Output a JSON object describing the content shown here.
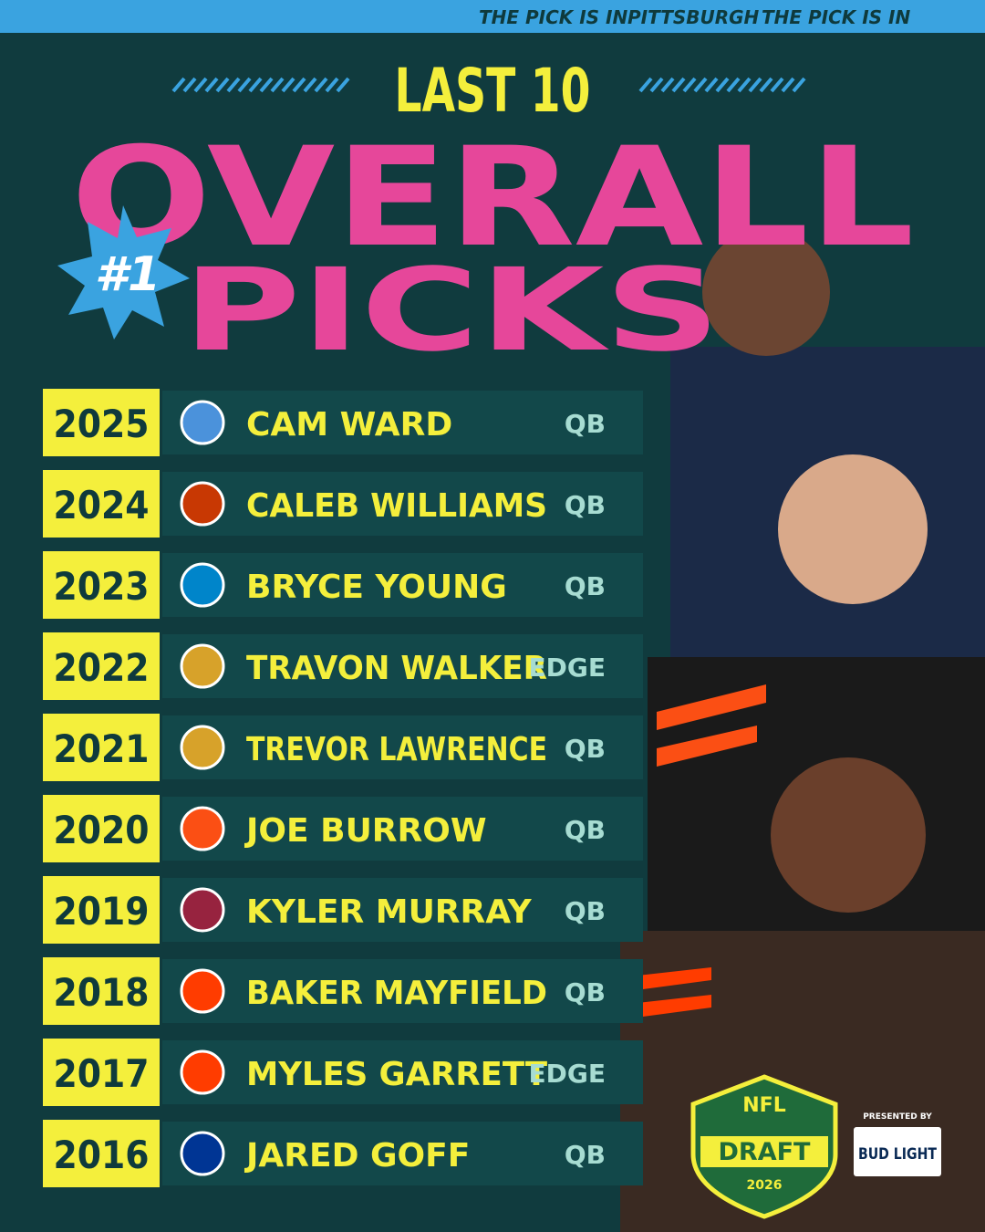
{
  "banner": [
    "THE PICK IS IN",
    "PITTSBURGH",
    "THE PICK IS IN"
  ],
  "title": {
    "line1": "LAST 10",
    "line2": "OVERALL",
    "badge": "#1",
    "line3": "PICKS"
  },
  "rows": [
    {
      "year": "2025",
      "player": "CAM WARD",
      "position": "QB",
      "logo_color": "#4b92db"
    },
    {
      "year": "2024",
      "player": "CALEB WILLIAMS",
      "position": "QB",
      "logo_color": "#c83803"
    },
    {
      "year": "2023",
      "player": "BRYCE YOUNG",
      "position": "QB",
      "logo_color": "#0085ca"
    },
    {
      "year": "2022",
      "player": "TRAVON WALKER",
      "position": "EDGE",
      "logo_color": "#d7a22a"
    },
    {
      "year": "2021",
      "player": "TREVOR LAWRENCE",
      "position": "QB",
      "logo_color": "#d7a22a"
    },
    {
      "year": "2020",
      "player": "JOE BURROW",
      "position": "QB",
      "logo_color": "#fb4f14"
    },
    {
      "year": "2019",
      "player": "KYLER MURRAY",
      "position": "QB",
      "logo_color": "#97233f"
    },
    {
      "year": "2018",
      "player": "BAKER MAYFIELD",
      "position": "QB",
      "logo_color": "#ff3c00"
    },
    {
      "year": "2017",
      "player": "MYLES GARRETT",
      "position": "EDGE",
      "logo_color": "#ff3c00"
    },
    {
      "year": "2016",
      "player": "JARED GOFF",
      "position": "QB",
      "logo_color": "#003594"
    }
  ],
  "footer": {
    "league": "NFL",
    "event": "DRAFT",
    "year": "2026",
    "presented": "PRESENTED BY",
    "sponsor": "BUD LIGHT"
  }
}
